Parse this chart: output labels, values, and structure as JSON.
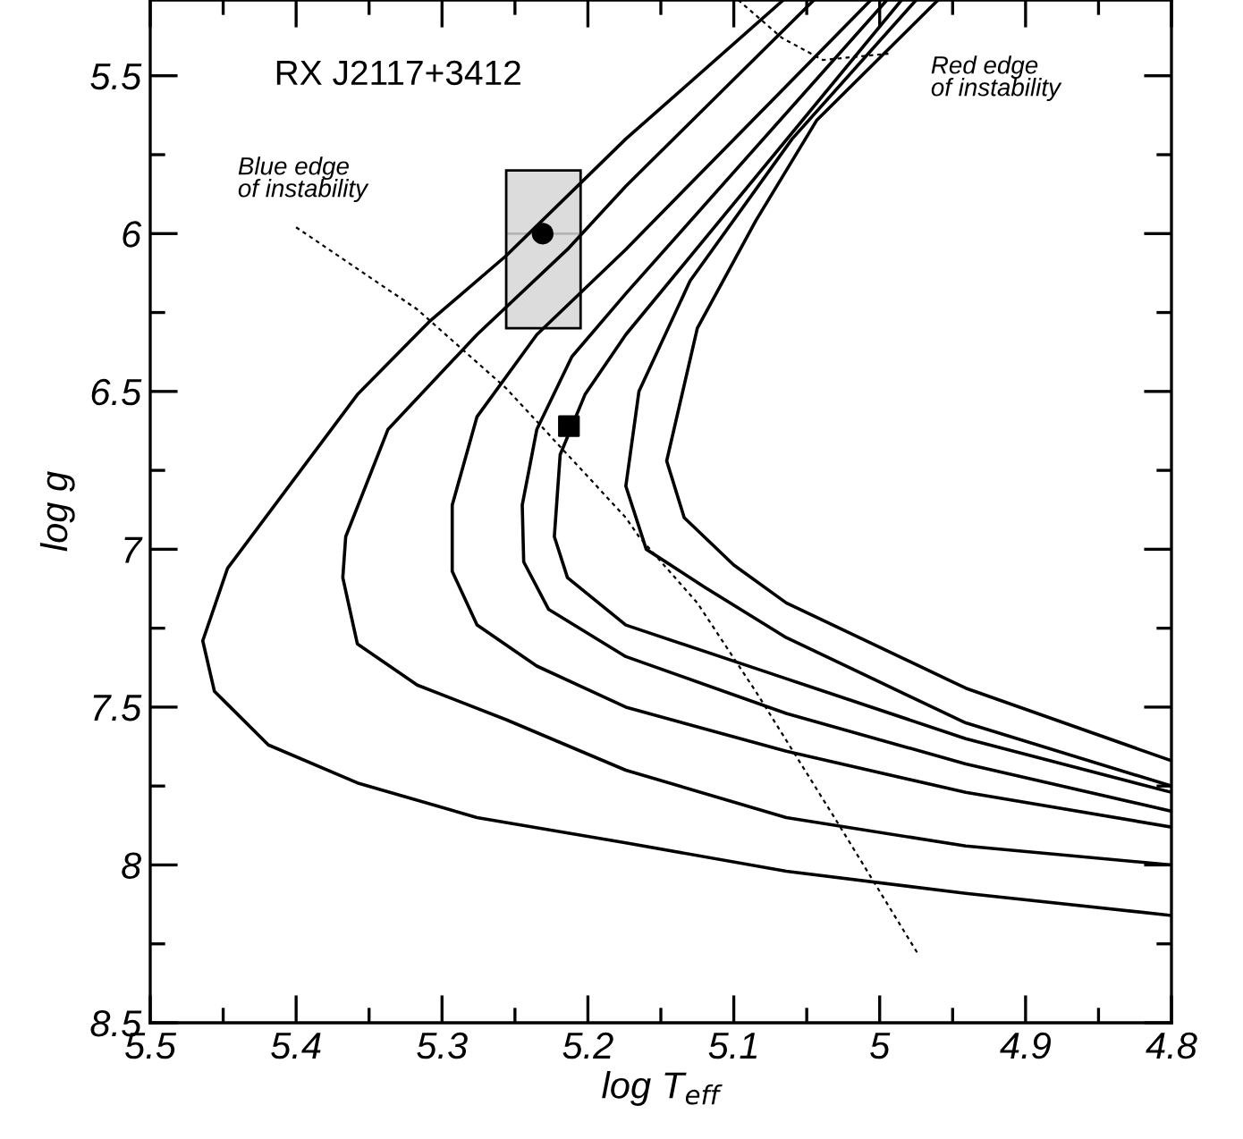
{
  "chart_data": {
    "type": "line",
    "xlabel": "log T$_{eff}$",
    "ylabel": "log g",
    "xlim": [
      5.5,
      4.8
    ],
    "ylim": [
      8.5,
      5.26
    ],
    "xticks": [
      5.5,
      5.4,
      5.3,
      5.2,
      5.1,
      5,
      4.9,
      4.8
    ],
    "yticks": [
      5.5,
      6,
      6.5,
      7,
      7.5,
      8,
      8.5
    ],
    "grid": false,
    "legend": false,
    "marker": "none",
    "line_style": "solid",
    "annotations": [
      "RX J2117+3412",
      "Blue edge\nof instability",
      "Red edge\nof instability"
    ],
    "series": [
      {
        "color": "#000000",
        "x": [
          5.066,
          5.174,
          5.256,
          5.309,
          5.358,
          5.447,
          5.464,
          5.456,
          5.419,
          5.358,
          5.276,
          5.174,
          5.064,
          4.941,
          4.8
        ],
        "values": [
          5.26,
          5.7,
          6.07,
          6.28,
          6.51,
          7.06,
          7.29,
          7.45,
          7.62,
          7.74,
          7.85,
          7.93,
          8.02,
          8.09,
          8.16
        ]
      },
      {
        "color": "#000000",
        "x": [
          5.045,
          5.174,
          5.214,
          5.276,
          5.337,
          5.366,
          5.368,
          5.358,
          5.317,
          5.256,
          5.174,
          5.064,
          4.941,
          4.8
        ],
        "values": [
          5.26,
          5.85,
          6.05,
          6.32,
          6.62,
          6.96,
          7.09,
          7.3,
          7.43,
          7.54,
          7.7,
          7.85,
          7.94,
          8.0
        ]
      },
      {
        "color": "#000000",
        "x": [
          5.006,
          5.174,
          5.235,
          5.276,
          5.293,
          5.293,
          5.276,
          5.235,
          5.174,
          5.064,
          4.941,
          4.8
        ],
        "values": [
          5.26,
          6.05,
          6.32,
          6.58,
          6.86,
          7.07,
          7.24,
          7.37,
          7.5,
          7.64,
          7.77,
          7.88
        ]
      },
      {
        "color": "#000000",
        "x": [
          4.995,
          5.174,
          5.211,
          5.235,
          5.245,
          5.244,
          5.227,
          5.174,
          5.064,
          4.941,
          4.8
        ],
        "values": [
          5.26,
          6.19,
          6.39,
          6.62,
          6.86,
          7.04,
          7.19,
          7.34,
          7.52,
          7.68,
          7.83
        ]
      },
      {
        "color": "#000000",
        "x": [
          4.985,
          5.174,
          5.202,
          5.219,
          5.223,
          5.214,
          5.174,
          5.064,
          4.941,
          4.8
        ],
        "values": [
          5.26,
          6.32,
          6.51,
          6.7,
          6.96,
          7.09,
          7.24,
          7.41,
          7.6,
          7.77
        ]
      },
      {
        "color": "#000000",
        "x": [
          4.975,
          5.06,
          5.13,
          5.165,
          5.174,
          5.16,
          5.12,
          5.064,
          4.941,
          4.8
        ],
        "values": [
          5.26,
          5.7,
          6.15,
          6.5,
          6.8,
          7.0,
          7.12,
          7.28,
          7.55,
          7.75
        ]
      },
      {
        "color": "#000000",
        "x": [
          4.96,
          5.043,
          5.085,
          5.125,
          5.146,
          5.134,
          5.1,
          5.064,
          4.941,
          4.8
        ],
        "values": [
          5.26,
          5.64,
          5.96,
          6.3,
          6.72,
          6.9,
          7.05,
          7.17,
          7.44,
          7.67
        ]
      },
      {
        "color": "#000000",
        "line_style": "dotted",
        "x": [
          5.4,
          5.317,
          5.256,
          5.174,
          5.165,
          5.125,
          5.085,
          5.031,
          4.974
        ],
        "values": [
          5.98,
          6.24,
          6.49,
          6.9,
          6.96,
          7.17,
          7.45,
          7.85,
          8.28
        ]
      },
      {
        "color": "#000000",
        "line_style": "dotted",
        "x": [
          5.097,
          5.067,
          5.039,
          4.994
        ],
        "values": [
          5.26,
          5.38,
          5.45,
          5.43
        ]
      },
      {
        "type": "scatter",
        "marker": "circle",
        "color": "#000000",
        "x": [
          5.231
        ],
        "values": [
          6.0
        ],
        "errors": [
          [
            5.8,
            6.3
          ]
        ],
        "xerrors": [
          [
            5.205,
            5.256
          ]
        ]
      },
      {
        "type": "scatter",
        "marker": "square",
        "color": "#000000",
        "x": [
          5.213
        ],
        "values": [
          6.61
        ]
      }
    ]
  }
}
